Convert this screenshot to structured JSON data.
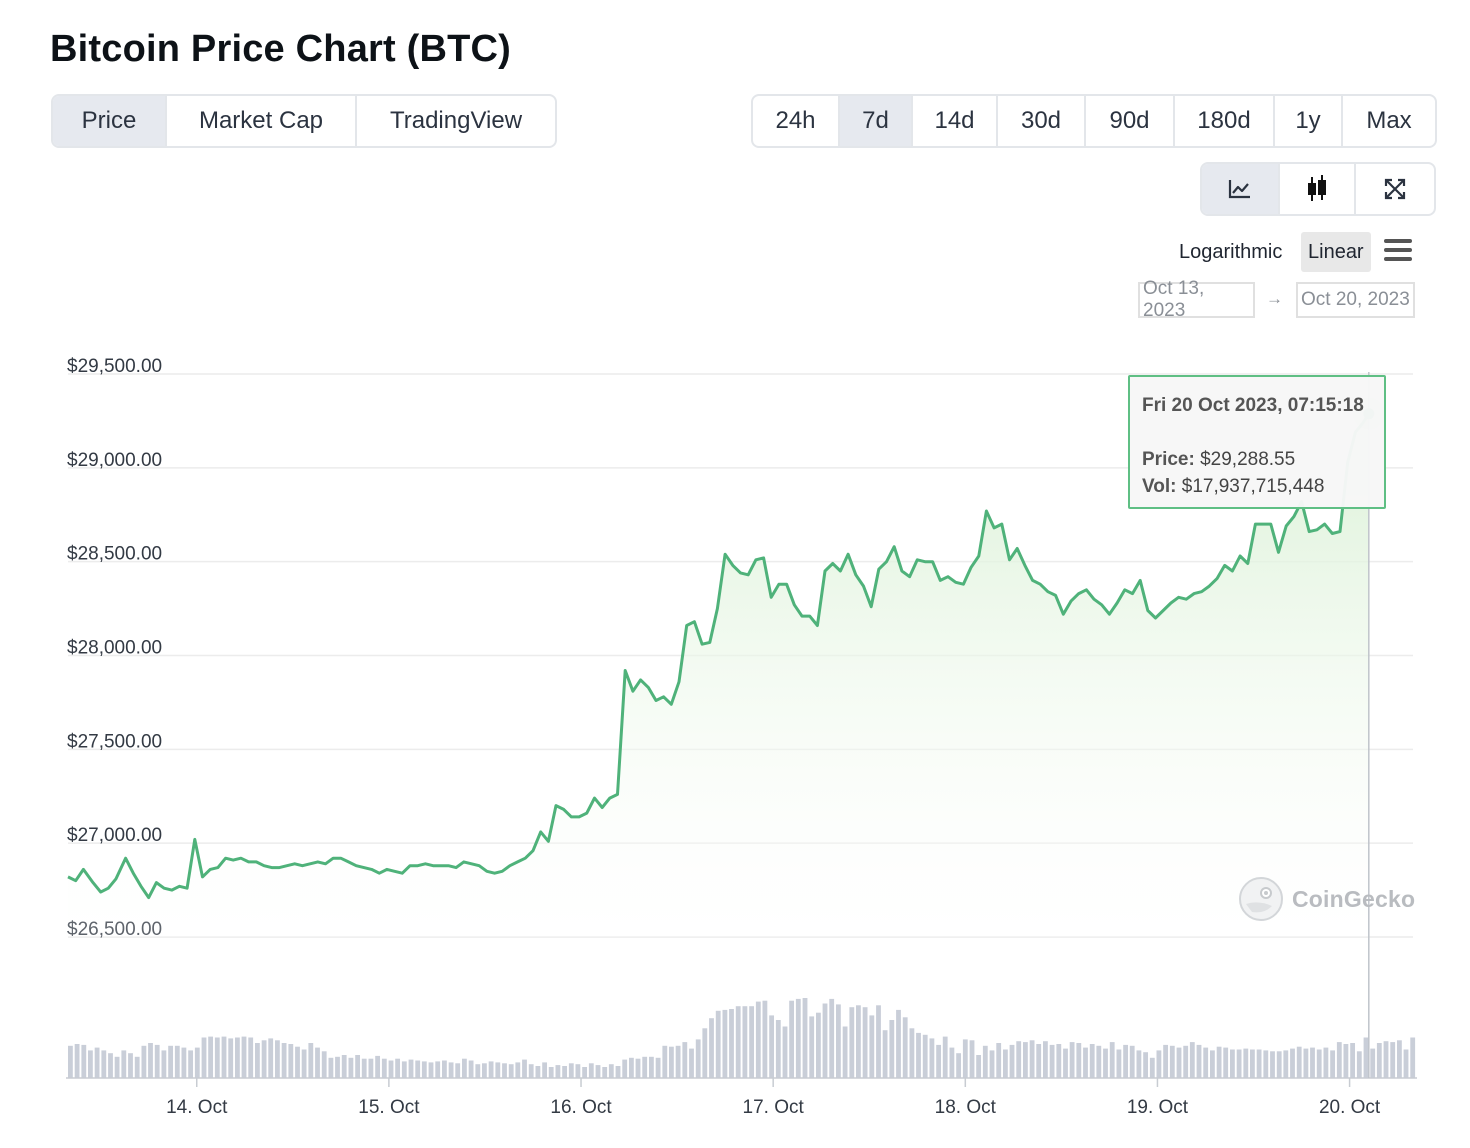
{
  "page_title": "Bitcoin Price Chart (BTC)",
  "tabs": [
    {
      "label": "Price",
      "active": true
    },
    {
      "label": "Market Cap",
      "active": false
    },
    {
      "label": "TradingView",
      "active": false
    }
  ],
  "ranges": [
    {
      "label": "24h",
      "active": false
    },
    {
      "label": "7d",
      "active": true
    },
    {
      "label": "14d",
      "active": false
    },
    {
      "label": "30d",
      "active": false
    },
    {
      "label": "90d",
      "active": false
    },
    {
      "label": "180d",
      "active": false
    },
    {
      "label": "1y",
      "active": false
    },
    {
      "label": "Max",
      "active": false
    }
  ],
  "chart_type_buttons": [
    {
      "icon": "line-chart-icon",
      "active": true
    },
    {
      "icon": "candlestick-icon",
      "active": false
    },
    {
      "icon": "expand-icon",
      "active": false
    }
  ],
  "scale": {
    "log_label": "Logarithmic",
    "linear_label": "Linear",
    "selected": "Linear"
  },
  "date_range": {
    "from": "Oct 13, 2023",
    "arrow": "→",
    "to": "Oct 20, 2023"
  },
  "tooltip": {
    "time": "Fri 20 Oct 2023, 07:15:18",
    "price_label": "Price:",
    "price_value": "$29,288.55",
    "vol_label": "Vol:",
    "vol_value": "$17,937,715,448"
  },
  "watermark": "CoinGecko",
  "colors": {
    "line": "#4fb27a",
    "area_top": "#d8f0d3",
    "volume": "#c9ced8",
    "accent_border": "#5fbf84"
  },
  "chart_data": {
    "type": "area",
    "title": "Bitcoin Price Chart (BTC)",
    "y_ticks": [
      "$26,500.00",
      "$27,000.00",
      "$27,500.00",
      "$28,000.00",
      "$28,500.00",
      "$29,000.00",
      "$29,500.00"
    ],
    "y_tick_values": [
      26500,
      27000,
      27500,
      28000,
      28500,
      29000,
      29500
    ],
    "ylim": [
      26500,
      29500
    ],
    "x_ticks": [
      "14. Oct",
      "15. Oct",
      "16. Oct",
      "17. Oct",
      "18. Oct",
      "19. Oct",
      "20. Oct"
    ],
    "x_tick_days": [
      1,
      2,
      3,
      4,
      5,
      6,
      7
    ],
    "x_range_days": [
      0.33,
      7.33
    ],
    "series": [
      {
        "name": "Price",
        "points": [
          [
            0.33,
            26820
          ],
          [
            0.37,
            26800
          ],
          [
            0.41,
            26860
          ],
          [
            0.46,
            26790
          ],
          [
            0.5,
            26740
          ],
          [
            0.54,
            26760
          ],
          [
            0.58,
            26810
          ],
          [
            0.63,
            26920
          ],
          [
            0.67,
            26840
          ],
          [
            0.71,
            26770
          ],
          [
            0.75,
            26710
          ],
          [
            0.79,
            26790
          ],
          [
            0.83,
            26760
          ],
          [
            0.87,
            26750
          ],
          [
            0.91,
            26770
          ],
          [
            0.95,
            26760
          ],
          [
            0.99,
            27020
          ],
          [
            1.03,
            26820
          ],
          [
            1.07,
            26860
          ],
          [
            1.11,
            26870
          ],
          [
            1.15,
            26920
          ],
          [
            1.19,
            26910
          ],
          [
            1.23,
            26920
          ],
          [
            1.27,
            26900
          ],
          [
            1.31,
            26900
          ],
          [
            1.35,
            26880
          ],
          [
            1.39,
            26870
          ],
          [
            1.43,
            26870
          ],
          [
            1.47,
            26880
          ],
          [
            1.51,
            26890
          ],
          [
            1.55,
            26880
          ],
          [
            1.59,
            26890
          ],
          [
            1.63,
            26900
          ],
          [
            1.67,
            26890
          ],
          [
            1.71,
            26920
          ],
          [
            1.75,
            26920
          ],
          [
            1.79,
            26900
          ],
          [
            1.83,
            26880
          ],
          [
            1.87,
            26870
          ],
          [
            1.91,
            26860
          ],
          [
            1.95,
            26840
          ],
          [
            1.99,
            26860
          ],
          [
            2.03,
            26850
          ],
          [
            2.07,
            26840
          ],
          [
            2.11,
            26880
          ],
          [
            2.15,
            26880
          ],
          [
            2.19,
            26890
          ],
          [
            2.23,
            26880
          ],
          [
            2.27,
            26880
          ],
          [
            2.31,
            26880
          ],
          [
            2.35,
            26870
          ],
          [
            2.39,
            26900
          ],
          [
            2.43,
            26890
          ],
          [
            2.47,
            26880
          ],
          [
            2.51,
            26850
          ],
          [
            2.55,
            26840
          ],
          [
            2.59,
            26850
          ],
          [
            2.63,
            26880
          ],
          [
            2.67,
            26900
          ],
          [
            2.71,
            26920
          ],
          [
            2.75,
            26960
          ],
          [
            2.79,
            27060
          ],
          [
            2.83,
            27010
          ],
          [
            2.87,
            27200
          ],
          [
            2.91,
            27180
          ],
          [
            2.95,
            27140
          ],
          [
            2.99,
            27140
          ],
          [
            3.03,
            27160
          ],
          [
            3.07,
            27240
          ],
          [
            3.11,
            27190
          ],
          [
            3.15,
            27240
          ],
          [
            3.19,
            27260
          ],
          [
            3.23,
            27920
          ],
          [
            3.27,
            27810
          ],
          [
            3.31,
            27870
          ],
          [
            3.35,
            27830
          ],
          [
            3.39,
            27760
          ],
          [
            3.43,
            27780
          ],
          [
            3.47,
            27740
          ],
          [
            3.51,
            27860
          ],
          [
            3.55,
            28160
          ],
          [
            3.59,
            28180
          ],
          [
            3.63,
            28060
          ],
          [
            3.67,
            28070
          ],
          [
            3.71,
            28250
          ],
          [
            3.75,
            28540
          ],
          [
            3.79,
            28480
          ],
          [
            3.83,
            28440
          ],
          [
            3.87,
            28430
          ],
          [
            3.91,
            28510
          ],
          [
            3.95,
            28520
          ],
          [
            3.99,
            28310
          ],
          [
            4.03,
            28380
          ],
          [
            4.07,
            28380
          ],
          [
            4.11,
            28270
          ],
          [
            4.15,
            28210
          ],
          [
            4.19,
            28210
          ],
          [
            4.23,
            28160
          ],
          [
            4.27,
            28450
          ],
          [
            4.31,
            28490
          ],
          [
            4.35,
            28450
          ],
          [
            4.39,
            28540
          ],
          [
            4.43,
            28430
          ],
          [
            4.47,
            28370
          ],
          [
            4.51,
            28260
          ],
          [
            4.55,
            28460
          ],
          [
            4.59,
            28500
          ],
          [
            4.63,
            28580
          ],
          [
            4.67,
            28450
          ],
          [
            4.71,
            28420
          ],
          [
            4.75,
            28510
          ],
          [
            4.79,
            28500
          ],
          [
            4.83,
            28500
          ],
          [
            4.87,
            28400
          ],
          [
            4.91,
            28420
          ],
          [
            4.95,
            28390
          ],
          [
            4.99,
            28380
          ],
          [
            5.03,
            28470
          ],
          [
            5.07,
            28530
          ],
          [
            5.11,
            28770
          ],
          [
            5.15,
            28680
          ],
          [
            5.19,
            28700
          ],
          [
            5.23,
            28510
          ],
          [
            5.27,
            28570
          ],
          [
            5.31,
            28480
          ],
          [
            5.35,
            28400
          ],
          [
            5.39,
            28380
          ],
          [
            5.43,
            28340
          ],
          [
            5.47,
            28320
          ],
          [
            5.51,
            28220
          ],
          [
            5.55,
            28290
          ],
          [
            5.59,
            28330
          ],
          [
            5.63,
            28350
          ],
          [
            5.67,
            28300
          ],
          [
            5.71,
            28270
          ],
          [
            5.75,
            28220
          ],
          [
            5.79,
            28280
          ],
          [
            5.83,
            28350
          ],
          [
            5.87,
            28330
          ],
          [
            5.91,
            28400
          ],
          [
            5.95,
            28240
          ],
          [
            5.99,
            28200
          ],
          [
            6.03,
            28240
          ],
          [
            6.07,
            28280
          ],
          [
            6.11,
            28310
          ],
          [
            6.15,
            28300
          ],
          [
            6.19,
            28330
          ],
          [
            6.23,
            28340
          ],
          [
            6.27,
            28370
          ],
          [
            6.31,
            28410
          ],
          [
            6.35,
            28480
          ],
          [
            6.39,
            28450
          ],
          [
            6.43,
            28530
          ],
          [
            6.47,
            28490
          ],
          [
            6.51,
            28700
          ],
          [
            6.55,
            28700
          ],
          [
            6.59,
            28700
          ],
          [
            6.63,
            28550
          ],
          [
            6.67,
            28690
          ],
          [
            6.71,
            28740
          ],
          [
            6.75,
            28820
          ],
          [
            6.79,
            28660
          ],
          [
            6.83,
            28670
          ],
          [
            6.87,
            28700
          ],
          [
            6.91,
            28650
          ],
          [
            6.95,
            28660
          ],
          [
            6.99,
            29030
          ],
          [
            7.03,
            29190
          ],
          [
            7.07,
            29240
          ],
          [
            7.1,
            29288.55
          ]
        ]
      },
      {
        "name": "Vol",
        "values": [
          0.35,
          0.37,
          0.36,
          0.3,
          0.33,
          0.3,
          0.27,
          0.23,
          0.3,
          0.27,
          0.23,
          0.35,
          0.38,
          0.36,
          0.3,
          0.35,
          0.35,
          0.33,
          0.3,
          0.33,
          0.44,
          0.45,
          0.44,
          0.45,
          0.43,
          0.44,
          0.45,
          0.44,
          0.38,
          0.41,
          0.43,
          0.41,
          0.38,
          0.37,
          0.34,
          0.31,
          0.38,
          0.33,
          0.29,
          0.22,
          0.23,
          0.25,
          0.22,
          0.25,
          0.21,
          0.21,
          0.24,
          0.21,
          0.19,
          0.21,
          0.18,
          0.2,
          0.19,
          0.18,
          0.17,
          0.18,
          0.19,
          0.17,
          0.16,
          0.21,
          0.19,
          0.15,
          0.16,
          0.18,
          0.17,
          0.16,
          0.15,
          0.17,
          0.2,
          0.15,
          0.13,
          0.17,
          0.12,
          0.14,
          0.13,
          0.16,
          0.15,
          0.12,
          0.16,
          0.14,
          0.12,
          0.15,
          0.13,
          0.2,
          0.22,
          0.21,
          0.23,
          0.23,
          0.22,
          0.35,
          0.34,
          0.35,
          0.39,
          0.32,
          0.42,
          0.54,
          0.65,
          0.73,
          0.74,
          0.75,
          0.78,
          0.78,
          0.78,
          0.83,
          0.84,
          0.68,
          0.63,
          0.56,
          0.84,
          0.86,
          0.87,
          0.67,
          0.71,
          0.81,
          0.86,
          0.8,
          0.56,
          0.77,
          0.79,
          0.77,
          0.68,
          0.79,
          0.52,
          0.63,
          0.74,
          0.66,
          0.54,
          0.49,
          0.47,
          0.43,
          0.36,
          0.45,
          0.33,
          0.27,
          0.42,
          0.41,
          0.25,
          0.35,
          0.3,
          0.38,
          0.31,
          0.36,
          0.4,
          0.39,
          0.41,
          0.37,
          0.4,
          0.36,
          0.37,
          0.32,
          0.39,
          0.38,
          0.33,
          0.37,
          0.35,
          0.32,
          0.39,
          0.31,
          0.36,
          0.35,
          0.3,
          0.28,
          0.22,
          0.3,
          0.36,
          0.35,
          0.33,
          0.35,
          0.39,
          0.36,
          0.33,
          0.3,
          0.34,
          0.33,
          0.31,
          0.31,
          0.32,
          0.31,
          0.31,
          0.3,
          0.29,
          0.29,
          0.3,
          0.32,
          0.34,
          0.32,
          0.33,
          0.31,
          0.33,
          0.3,
          0.39,
          0.37,
          0.38,
          0.29,
          0.44,
          0.32,
          0.38,
          0.4,
          0.39,
          0.41,
          0.31,
          0.44
        ]
      }
    ],
    "grid": true,
    "legend": "none"
  }
}
